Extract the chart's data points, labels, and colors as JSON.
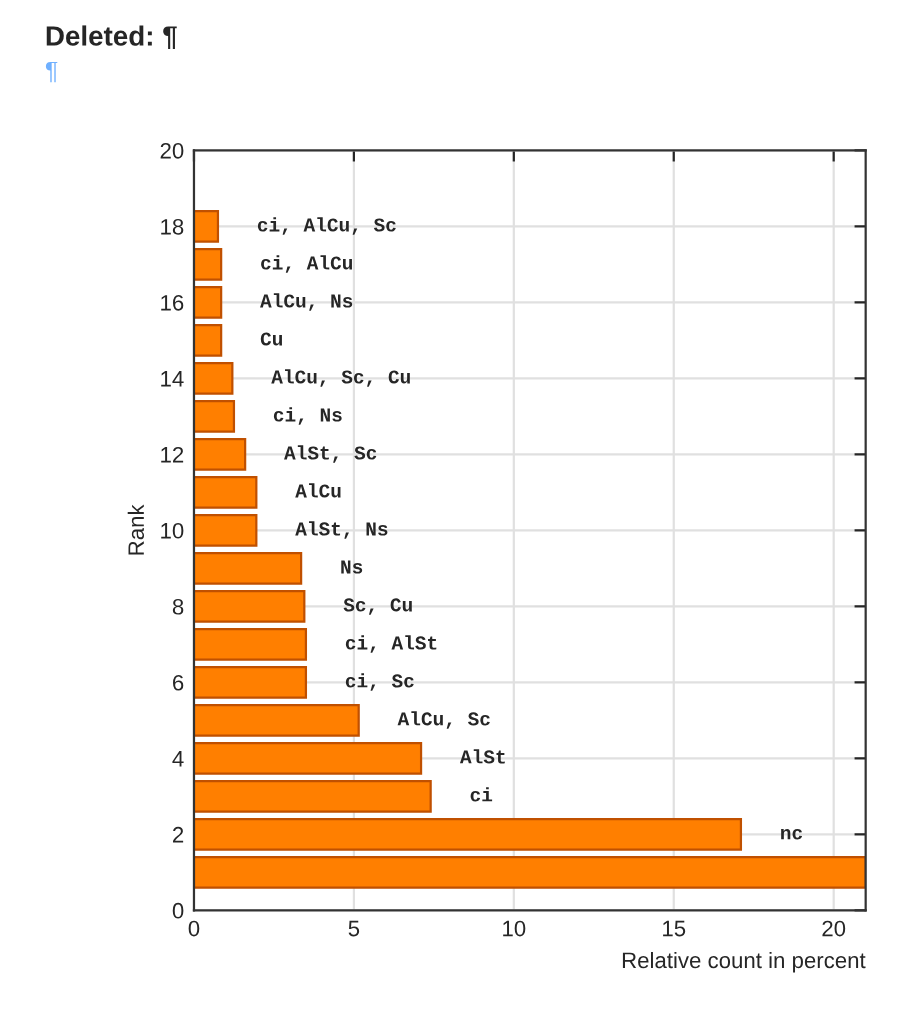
{
  "chart_data": {
    "type": "bar",
    "orientation": "horizontal",
    "xlabel": "Relative count in percent",
    "ylabel": "Rank",
    "x": [
      1,
      2,
      3,
      4,
      5,
      6,
      7,
      8,
      9,
      10,
      11,
      12,
      13,
      14,
      15,
      16,
      17,
      18
    ],
    "values": [
      21,
      17.1,
      7.4,
      7.1,
      5.15,
      3.5,
      3.5,
      3.45,
      3.35,
      1.95,
      1.95,
      1.6,
      1.25,
      1.2,
      0.85,
      0.85,
      0.85,
      0.75
    ],
    "color": "#ff7f00",
    "xlim": [
      0,
      21
    ],
    "xticks": [
      0,
      5,
      10,
      15,
      20
    ],
    "ylim": [
      0,
      20
    ],
    "yticks": [
      0,
      2,
      4,
      6,
      8,
      10,
      12,
      14,
      16,
      18,
      20
    ],
    "grid": true,
    "annotations": [
      "Deleted: ¶",
      "¶",
      {
        "text": "nc",
        "x": 17.1,
        "y": 2
      },
      {
        "text": "ci",
        "x": 7.4,
        "y": 3
      },
      {
        "text": "AlSt",
        "x": 7.1,
        "y": 4
      },
      {
        "text": "AlCu, Sc",
        "x": 5.15,
        "y": 5
      },
      {
        "text": "ci, Sc",
        "x": 3.5,
        "y": 6
      },
      {
        "text": "ci, AlSt",
        "x": 3.5,
        "y": 7
      },
      {
        "text": "Sc, Cu",
        "x": 3.45,
        "y": 8
      },
      {
        "text": "Ns",
        "x": 3.35,
        "y": 9
      },
      {
        "text": "AlSt, Ns",
        "x": 1.95,
        "y": 10
      },
      {
        "text": "AlCu",
        "x": 1.95,
        "y": 11
      },
      {
        "text": "AlSt, Sc",
        "x": 1.6,
        "y": 12
      },
      {
        "text": "ci, Ns",
        "x": 1.25,
        "y": 13
      },
      {
        "text": "AlCu, Sc, Cu",
        "x": 1.2,
        "y": 14
      },
      {
        "text": "Cu",
        "x": 0.85,
        "y": 15
      },
      {
        "text": "AlCu, Ns",
        "x": 0.85,
        "y": 16
      },
      {
        "text": "ci, AlCu",
        "x": 0.85,
        "y": 17
      },
      {
        "text": "ci, AlCu, Sc",
        "x": 0.75,
        "y": 18
      }
    ]
  }
}
